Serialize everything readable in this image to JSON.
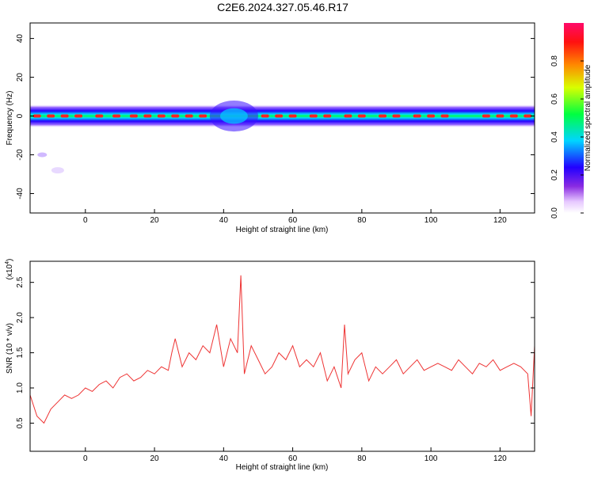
{
  "title": "C2E6.2024.327.05.46.R17",
  "colors": {
    "trace": "#ee3333",
    "axis": "#000000"
  },
  "chart_data": [
    {
      "type": "heatmap",
      "title": "C2E6.2024.327.05.46.R17",
      "xlabel": "Height of straight line (km)",
      "ylabel": "Frequency (Hz)",
      "xlim": [
        -16,
        130
      ],
      "ylim": [
        -50,
        48
      ],
      "xticks": [
        "0",
        "20",
        "40",
        "60",
        "80",
        "100",
        "120"
      ],
      "yticks": [
        "40",
        "20",
        "0",
        "-20",
        "-40"
      ],
      "description_band": {
        "center_hz": 0,
        "halfwidth_hz": 3
      },
      "colorbar": {
        "label": "Normalized spectral amplitude",
        "range": [
          0,
          1
        ],
        "ticks": [
          "0.0",
          "0.2",
          "0.4",
          "0.6",
          "0.8"
        ],
        "colormap": "rainbow (white-violet-blue-cyan-green-yellow-red-magenta)"
      }
    },
    {
      "type": "line",
      "xlabel": "Height of straight line (km)",
      "ylabel": "SNR (10 * v/v)",
      "y_multiplier": "(x10",
      "y_multiplier_exp": "4",
      "xlim": [
        -16,
        130
      ],
      "ylim": [
        0.1,
        2.8
      ],
      "xticks": [
        "0",
        "20",
        "40",
        "60",
        "80",
        "100",
        "120"
      ],
      "yticks": [
        "2.5",
        "2.0",
        "1.5",
        "1.0",
        "0.5"
      ],
      "series": [
        {
          "x": [
            -16,
            -14,
            -12,
            -10,
            -8,
            -6,
            -4,
            -2,
            0,
            2,
            4,
            6,
            8,
            10,
            12,
            14,
            16,
            18,
            20,
            22,
            24,
            25,
            26,
            28,
            30,
            32,
            34,
            36,
            38,
            40,
            42,
            44,
            45,
            46,
            48,
            50,
            52,
            54,
            56,
            58,
            60,
            62,
            64,
            66,
            68,
            70,
            72,
            74,
            75,
            76,
            78,
            80,
            82,
            84,
            86,
            88,
            90,
            92,
            94,
            96,
            98,
            100,
            102,
            104,
            106,
            108,
            110,
            112,
            114,
            116,
            118,
            120,
            122,
            124,
            126,
            128,
            129,
            130
          ],
          "values": [
            0.9,
            0.6,
            0.5,
            0.7,
            0.8,
            0.9,
            0.85,
            0.9,
            1.0,
            0.95,
            1.05,
            1.1,
            1.0,
            1.15,
            1.2,
            1.1,
            1.15,
            1.25,
            1.2,
            1.3,
            1.25,
            1.5,
            1.7,
            1.3,
            1.5,
            1.4,
            1.6,
            1.5,
            1.9,
            1.3,
            1.7,
            1.5,
            2.6,
            1.2,
            1.6,
            1.4,
            1.2,
            1.3,
            1.5,
            1.4,
            1.6,
            1.3,
            1.4,
            1.3,
            1.5,
            1.1,
            1.3,
            1.0,
            1.9,
            1.2,
            1.4,
            1.5,
            1.1,
            1.3,
            1.2,
            1.3,
            1.4,
            1.2,
            1.3,
            1.4,
            1.25,
            1.3,
            1.35,
            1.3,
            1.25,
            1.4,
            1.3,
            1.2,
            1.35,
            1.3,
            1.4,
            1.25,
            1.3,
            1.35,
            1.3,
            1.2,
            0.6,
            1.6
          ]
        }
      ]
    }
  ]
}
